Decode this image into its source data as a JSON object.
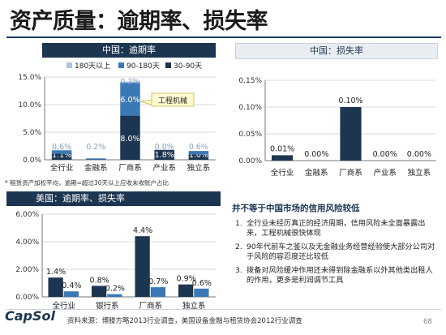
{
  "slide": {
    "title": "资产质量：逾期率、损失率",
    "footnote": "* 租赁资产加权平均，逾期=超过30天以上应收未收账户占比",
    "source": "资料来源：博滕方略2013行业调查，美国设备金融与租赁协会2012行业调查",
    "logo": "CapSol",
    "page": "68"
  },
  "note": {
    "title": "并不等于中国市场的信用风险较低",
    "items": [
      {
        "num": "1.",
        "text": "全行业未经历真正的经济周期，信用风险未全面暴露出来，工程机械很快体现"
      },
      {
        "num": "2.",
        "text": "90年代前车之鉴以及无金融业务经营经验使大部分公司对于风险的容忍度还比较低"
      },
      {
        "num": "3.",
        "text": "拨备对风险缓冲作用还未得到除金融系以外其他类出租人的作用，更多是利润调节工具"
      }
    ]
  },
  "colors": {
    "dark": "#1c3550",
    "mid": "#3a79b6",
    "light": "#a9c6e6",
    "header": "#1c3550"
  },
  "chart_data": [
    {
      "id": "china-overdue",
      "type": "bar",
      "stacked": true,
      "title": "中国：逾期率",
      "categories": [
        "全行业",
        "金融系",
        "厂商系",
        "产业系",
        "独立系"
      ],
      "series": [
        {
          "name": "180天以上",
          "color": "#a9c6e6",
          "values": [
            0.1,
            0.05,
            0.2,
            0.0,
            0.0
          ],
          "labels": [
            "",
            "",
            "0.2%",
            "",
            ""
          ]
        },
        {
          "name": "90-180天",
          "color": "#3a79b6",
          "values": [
            0.6,
            0.2,
            6.0,
            0.0,
            0.6
          ],
          "labels": [
            "0.6%",
            "0.2%",
            "6.0%",
            "0.0%",
            "0.6%"
          ]
        },
        {
          "name": "30-90天",
          "color": "#1c3550",
          "values": [
            1.1,
            0.05,
            8.0,
            1.8,
            1.0
          ],
          "labels": [
            "1.1%",
            "",
            "8.0%",
            "1.8%",
            "1.0%"
          ]
        }
      ],
      "ylim": [
        0,
        15
      ],
      "yticks": [
        "0.0%",
        "5.0%",
        "10.0%",
        "15.0%"
      ],
      "annotation": "工程机械",
      "legend_position": "top"
    },
    {
      "id": "china-loss",
      "type": "bar",
      "title": "中国：损失率",
      "categories": [
        "全行业",
        "金融系",
        "厂商系",
        "产业系",
        "独立系"
      ],
      "series": [
        {
          "color": "#1c3550",
          "values": [
            0.01,
            0.0,
            0.1,
            0.0,
            0.0
          ],
          "labels": [
            "0.01%",
            "0.00%",
            "0.10%",
            "0.00%",
            "0.00%"
          ]
        }
      ],
      "ylim": [
        0,
        0.15
      ],
      "yticks": [
        "0.00%",
        "0.05%",
        "0.10%",
        "0.15%"
      ]
    },
    {
      "id": "us-overdue-loss",
      "type": "bar",
      "title": "美国：逾期率、损失率",
      "categories": [
        "全行业",
        "银行系",
        "厂商系",
        "独立系"
      ],
      "series": [
        {
          "color": "#1c3550",
          "values": [
            1.4,
            0.8,
            4.4,
            0.9
          ],
          "labels": [
            "1.4%",
            "0.8%",
            "4.4%",
            "0.9%"
          ]
        },
        {
          "color": "#3a79b6",
          "values": [
            0.4,
            0.2,
            0.7,
            0.6
          ],
          "labels": [
            "0.4%",
            "0.2%",
            "0.7%",
            "0.6%"
          ]
        }
      ],
      "ylim": [
        0,
        6
      ],
      "yticks": [
        "0.00%",
        "2.00%",
        "4.00%",
        "6.00%"
      ]
    }
  ]
}
